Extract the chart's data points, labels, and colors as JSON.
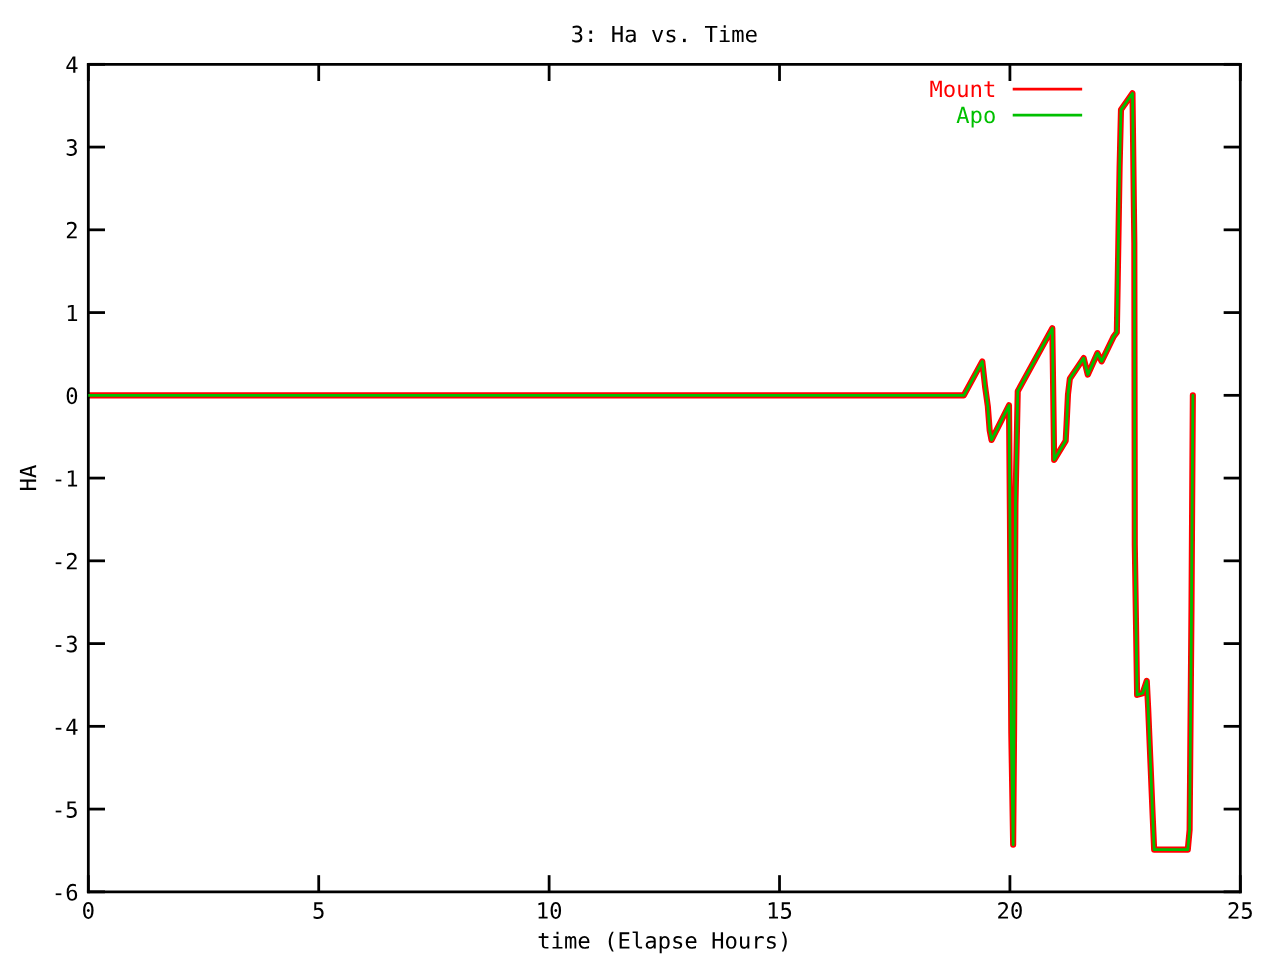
{
  "chart_data": {
    "type": "line",
    "title": "3: Ha vs. Time",
    "xlabel": "time (Elapse Hours)",
    "ylabel": "HA",
    "x": [
      0,
      19.0,
      19.4,
      19.46,
      19.52,
      19.56,
      19.6,
      19.98,
      20.0,
      20.03,
      20.07,
      20.09,
      20.12,
      20.17,
      20.92,
      20.96,
      21.21,
      21.23,
      21.26,
      21.3,
      21.6,
      21.69,
      21.9,
      21.99,
      22.25,
      22.32,
      22.34,
      22.38,
      22.41,
      22.66,
      22.7,
      22.71,
      22.76,
      22.88,
      22.97,
      23.0,
      23.05,
      23.1,
      23.13,
      23.86,
      23.9,
      23.94,
      23.97
    ],
    "series": [
      {
        "name": "Mount",
        "color": "#ff0000",
        "values": [
          0,
          0,
          0.41,
          0.11,
          -0.13,
          -0.42,
          -0.54,
          -0.12,
          -1.44,
          -4.08,
          -5.43,
          -4.06,
          -1.32,
          0.05,
          0.81,
          -0.78,
          -0.55,
          -0.34,
          0.01,
          0.2,
          0.45,
          0.25,
          0.51,
          0.41,
          0.71,
          0.76,
          1.41,
          2.75,
          3.45,
          3.65,
          1.84,
          -1.81,
          -3.62,
          -3.6,
          -3.45,
          -3.78,
          -4.44,
          -5.11,
          -5.49,
          -5.49,
          -5.25,
          -2.59,
          0.0
        ]
      },
      {
        "name": "Apo",
        "color": "#00c000",
        "values": [
          0,
          0,
          0.41,
          0.11,
          -0.13,
          -0.42,
          -0.54,
          -0.12,
          -1.44,
          -4.08,
          -5.43,
          -4.06,
          -1.32,
          0.05,
          0.81,
          -0.78,
          -0.55,
          -0.34,
          0.01,
          0.2,
          0.45,
          0.25,
          0.51,
          0.41,
          0.71,
          0.76,
          1.41,
          2.75,
          3.45,
          3.65,
          1.84,
          -1.81,
          -3.62,
          -3.6,
          -3.45,
          -3.78,
          -4.44,
          -5.11,
          -5.49,
          -5.49,
          -5.25,
          -2.59,
          0.0
        ]
      }
    ],
    "xlim": [
      0,
      25
    ],
    "xticks": [
      0,
      5,
      10,
      15,
      20,
      25
    ],
    "ylim": [
      -6,
      4
    ],
    "yticks": [
      4,
      3,
      2,
      1,
      0,
      -1,
      -2,
      -3,
      -4,
      -5,
      -6
    ],
    "legend": "top right"
  }
}
